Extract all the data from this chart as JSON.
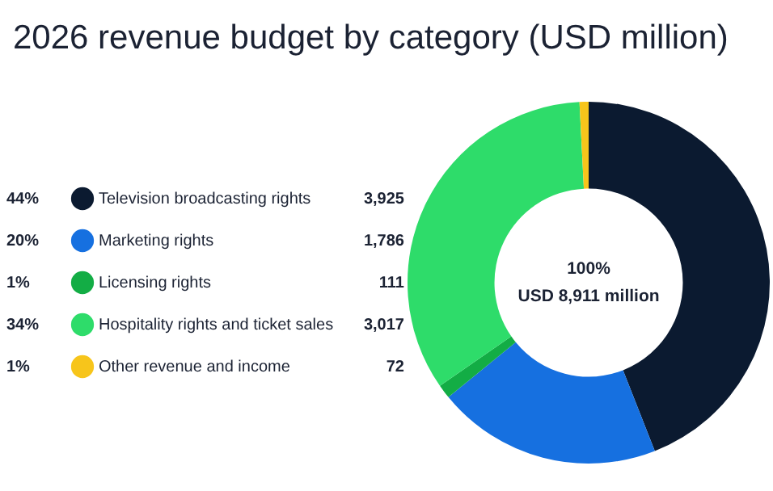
{
  "chart_data": {
    "type": "donut",
    "title": "2026 revenue budget by category (USD million)",
    "categories": [
      "Television broadcasting rights",
      "Marketing rights",
      "Licensing rights",
      "Hospitality rights and ticket sales",
      "Other revenue and income"
    ],
    "values": [
      3925,
      1786,
      111,
      3017,
      72
    ],
    "colors": [
      "#0b1a30",
      "#1670e0",
      "#13ad45",
      "#2edc6a",
      "#f7c51b"
    ],
    "value_labels": [
      "3,925",
      "1,786",
      "111",
      "3,017",
      "72"
    ],
    "legend": "left",
    "annotations": [
      "44%",
      "20%",
      "1%",
      "34%",
      "1%",
      "100%",
      "USD 8,911 million"
    ]
  }
}
